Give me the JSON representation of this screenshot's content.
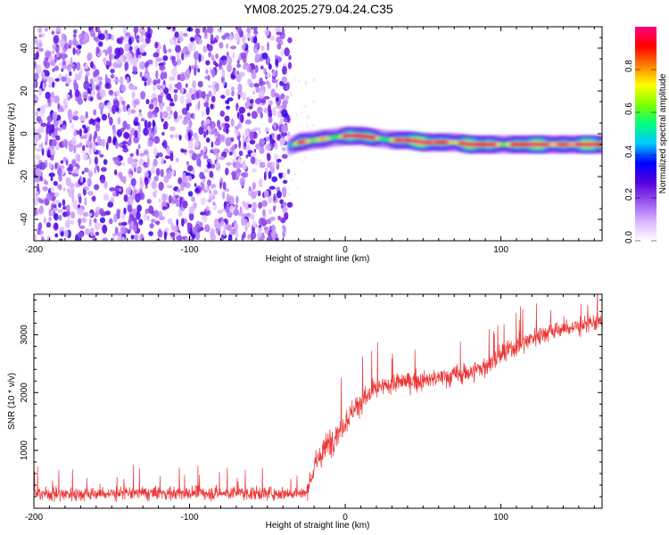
{
  "title": "YM08.2025.279.04.24.C35",
  "chart_data": [
    {
      "type": "heatmap",
      "title": "YM08.2025.279.04.24.C35",
      "xlabel": "Height of straight line (km)",
      "ylabel": "Frequency (Hz)",
      "xlim": [
        -200,
        165
      ],
      "ylim": [
        -50,
        50
      ],
      "x_ticks": [
        -200,
        -100,
        0,
        100
      ],
      "y_ticks": [
        -40,
        -20,
        0,
        20,
        40
      ],
      "colorbar": {
        "label": "Normalized spectral amplitude",
        "range": [
          0,
          1
        ],
        "ticks": [
          0.0,
          0.2,
          0.4,
          0.6,
          0.8
        ],
        "tick_labels": [
          "0.0",
          "0.2",
          "0.4",
          "0.6",
          "0.8"
        ],
        "colormap": [
          "#ffffff",
          "#d9b3ff",
          "#9a55ee",
          "#5500dd",
          "#0000ff",
          "#00c8ff",
          "#00ff80",
          "#80ff00",
          "#ffff00",
          "#ff8000",
          "#ff0000",
          "#ff0080"
        ]
      },
      "noise_region": {
        "x_range": [
          -200,
          -37
        ],
        "level": 0.12
      },
      "ridge": {
        "x": [
          -37,
          -30,
          -20,
          -10,
          0,
          10,
          20,
          30,
          40,
          50,
          60,
          70,
          80,
          90,
          100,
          110,
          120,
          130,
          140,
          150,
          165
        ],
        "frequency": [
          -6,
          -4,
          -3,
          -2,
          -1,
          -1,
          -2,
          -3,
          -3,
          -4,
          -4,
          -4,
          -5,
          -5,
          -5,
          -5,
          -5,
          -5,
          -5,
          -5,
          -5
        ],
        "peak_amplitude": [
          0.5,
          0.6,
          0.7,
          0.8,
          0.85,
          0.85,
          0.75,
          0.8,
          0.95,
          0.95,
          0.95,
          0.9,
          0.95,
          0.85,
          0.9,
          0.85,
          0.95,
          0.95,
          0.9,
          0.95,
          0.95
        ]
      }
    },
    {
      "type": "line",
      "xlabel": "Height of straight line (km)",
      "ylabel": "SNR (10 * v/v)",
      "xlim": [
        -200,
        165
      ],
      "ylim": [
        0,
        3700
      ],
      "x_ticks": [
        -200,
        -100,
        0,
        100
      ],
      "y_ticks": [
        1000,
        2000,
        3000
      ],
      "series": [
        {
          "color": "#ee3333",
          "x": [
            -200,
            -180,
            -160,
            -140,
            -120,
            -100,
            -80,
            -60,
            -40,
            -25,
            -20,
            -15,
            -10,
            -5,
            0,
            5,
            10,
            20,
            30,
            40,
            50,
            60,
            70,
            80,
            90,
            100,
            110,
            120,
            130,
            140,
            150,
            160,
            165
          ],
          "mean": [
            250,
            250,
            250,
            260,
            260,
            260,
            260,
            260,
            260,
            260,
            700,
            950,
            1150,
            1300,
            1500,
            1700,
            1850,
            2050,
            2150,
            2200,
            2200,
            2250,
            2300,
            2350,
            2450,
            2650,
            2800,
            2950,
            3050,
            3100,
            3150,
            3200,
            3250
          ],
          "spread": [
            300,
            300,
            300,
            300,
            300,
            300,
            280,
            280,
            280,
            280,
            500,
            600,
            600,
            550,
            550,
            500,
            500,
            450,
            400,
            400,
            400,
            400,
            450,
            450,
            450,
            450,
            450,
            400,
            400,
            400,
            400,
            400,
            400
          ]
        }
      ]
    }
  ]
}
